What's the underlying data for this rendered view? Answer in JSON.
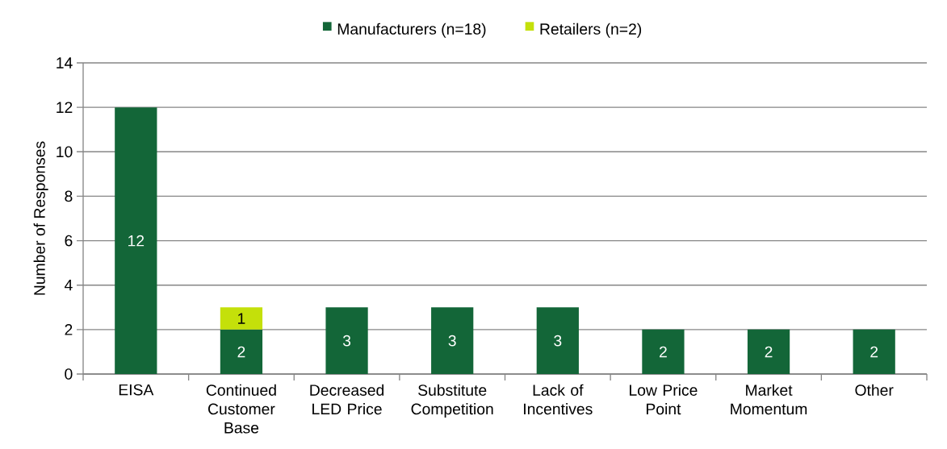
{
  "chart_data": {
    "type": "bar",
    "stacked": true,
    "ylabel": "Number of Responses",
    "categories": [
      "EISA",
      "Continued Customer Base",
      "Decreased LED Price",
      "Substitute Competition",
      "Lack of Incentives",
      "Low Price Point",
      "Market Momentum",
      "Other"
    ],
    "series": [
      {
        "name": "Manufacturers (n=18)",
        "color": "#136638",
        "values": [
          12,
          2,
          3,
          3,
          3,
          2,
          2,
          2
        ]
      },
      {
        "name": "Retailers (n=2)",
        "color": "#c4e00a",
        "values": [
          null,
          1,
          null,
          null,
          null,
          null,
          null,
          null
        ]
      }
    ],
    "ylim": [
      0,
      14
    ],
    "yticks": [
      0,
      2,
      4,
      6,
      8,
      10,
      12,
      14
    ],
    "grid": "y",
    "legend": "top",
    "data_labels": true
  }
}
